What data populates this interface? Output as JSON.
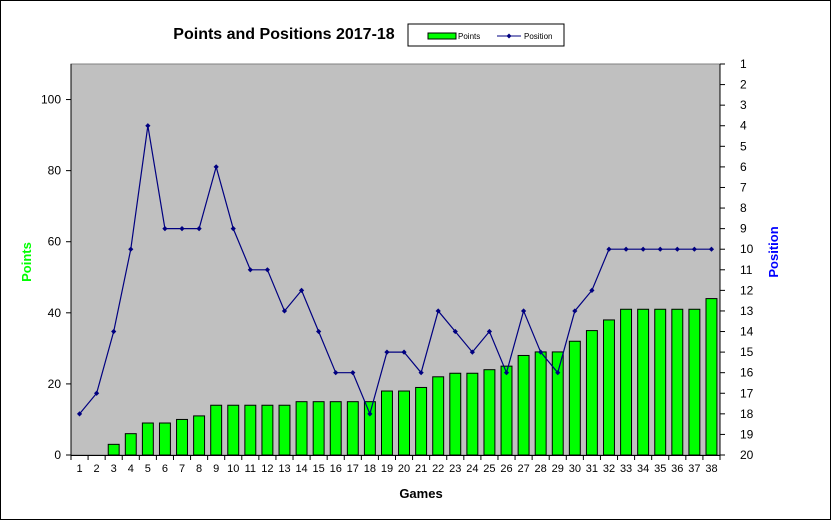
{
  "chart_data": {
    "type": "bar+line",
    "title": "Points and Positions 2017-18",
    "xlabel": "Games",
    "ylabel_left": "Points",
    "ylabel_right": "Position",
    "x": [
      1,
      2,
      3,
      4,
      5,
      6,
      7,
      8,
      9,
      10,
      11,
      12,
      13,
      14,
      15,
      16,
      17,
      18,
      19,
      20,
      21,
      22,
      23,
      24,
      25,
      26,
      27,
      28,
      29,
      30,
      31,
      32,
      33,
      34,
      35,
      36,
      37,
      38
    ],
    "left_axis": {
      "range": [
        0,
        110
      ],
      "ticks": [
        0,
        20,
        40,
        60,
        80,
        100
      ]
    },
    "right_axis": {
      "range": [
        1,
        20
      ],
      "inverted": true,
      "ticks": [
        1,
        2,
        3,
        4,
        5,
        6,
        7,
        8,
        9,
        10,
        11,
        12,
        13,
        14,
        15,
        16,
        17,
        18,
        19,
        20
      ]
    },
    "series": [
      {
        "name": "Points",
        "type": "bar",
        "axis": "left",
        "color": "#00ff00",
        "values": [
          0,
          0,
          3,
          6,
          9,
          9,
          10,
          11,
          14,
          14,
          14,
          14,
          14,
          15,
          15,
          15,
          15,
          15,
          18,
          18,
          19,
          22,
          23,
          23,
          24,
          25,
          28,
          29,
          29,
          32,
          35,
          38,
          41,
          41,
          41,
          41,
          41,
          44
        ]
      },
      {
        "name": "Position",
        "type": "line",
        "axis": "right",
        "color": "#000080",
        "values": [
          18,
          17,
          14,
          10,
          4,
          9,
          9,
          9,
          6,
          9,
          11,
          11,
          13,
          12,
          14,
          16,
          16,
          18,
          15,
          15,
          16,
          13,
          14,
          15,
          14,
          16,
          13,
          15,
          16,
          13,
          12,
          10,
          10,
          10,
          10,
          10,
          10,
          10
        ]
      }
    ],
    "legend_position": "top",
    "grid": false,
    "plot_background": "#c0c0c0"
  }
}
